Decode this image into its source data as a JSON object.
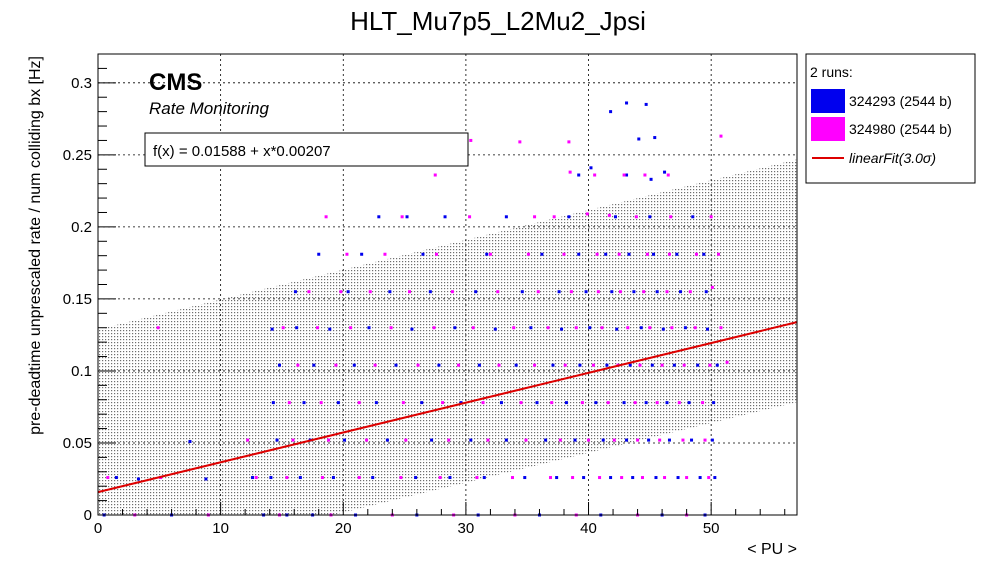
{
  "chart_data": {
    "type": "scatter",
    "title": "HLT_Mu7p5_L2Mu2_Jpsi",
    "xlabel": "< PU >",
    "ylabel": "pre-deadtime unprescaled rate / num colliding bx [Hz]",
    "xlim": [
      0,
      57
    ],
    "ylim": [
      0,
      0.32
    ],
    "xticks": [
      0,
      10,
      20,
      30,
      40,
      50
    ],
    "yticks": [
      0,
      0.05,
      0.1,
      0.15,
      0.2,
      0.25,
      0.3
    ],
    "ytick_labels": [
      "0",
      "0.05",
      "0.1",
      "0.15",
      "0.2",
      "0.25",
      "0.3"
    ],
    "grid": true,
    "cms_label": "CMS",
    "cms_sublabel": "Rate Monitoring",
    "fit_formula": "f(x) = 0.01588 + x*0.00207",
    "fit": {
      "intercept": 0.01588,
      "slope": 0.00207,
      "color": "#dd0000"
    },
    "band": {
      "sigma": 3.0,
      "lower_offset": -0.0555,
      "upper_offset": 0.113
    },
    "legend": {
      "header": "2 runs:",
      "entries": [
        {
          "label": "324293 (2544 b)",
          "color": "#0000ee",
          "kind": "box"
        },
        {
          "label": "324980 (2544 b)",
          "color": "#ff00ff",
          "kind": "box"
        },
        {
          "label": "linearFit(3.0σ)",
          "color": "#dd0000",
          "kind": "line"
        }
      ]
    },
    "series": [
      {
        "name": "324293 (2544 b)",
        "color": "#0000ee",
        "points": [
          [
            1.5,
            0.026
          ],
          [
            3.3,
            0.025
          ],
          [
            8.8,
            0.025
          ],
          [
            12.6,
            0.026
          ],
          [
            14.1,
            0.026
          ],
          [
            16.5,
            0.026
          ],
          [
            19.2,
            0.026
          ],
          [
            22.4,
            0.026
          ],
          [
            25.9,
            0.026
          ],
          [
            28.7,
            0.026
          ],
          [
            31.5,
            0.026
          ],
          [
            34.8,
            0.026
          ],
          [
            37.4,
            0.026
          ],
          [
            39.6,
            0.026
          ],
          [
            41.8,
            0.026
          ],
          [
            43.6,
            0.026
          ],
          [
            45.5,
            0.026
          ],
          [
            47.3,
            0.026
          ],
          [
            49.1,
            0.026
          ],
          [
            50.3,
            0.026
          ],
          [
            7.5,
            0.051
          ],
          [
            14.6,
            0.052
          ],
          [
            17.3,
            0.052
          ],
          [
            20.1,
            0.052
          ],
          [
            23.6,
            0.052
          ],
          [
            27.2,
            0.052
          ],
          [
            30.4,
            0.052
          ],
          [
            33.3,
            0.052
          ],
          [
            36.5,
            0.052
          ],
          [
            38.9,
            0.052
          ],
          [
            41.2,
            0.052
          ],
          [
            43.1,
            0.052
          ],
          [
            44.9,
            0.052
          ],
          [
            46.6,
            0.052
          ],
          [
            48.4,
            0.052
          ],
          [
            50.1,
            0.052
          ],
          [
            14.3,
            0.078
          ],
          [
            16.8,
            0.078
          ],
          [
            19.6,
            0.078
          ],
          [
            22.7,
            0.078
          ],
          [
            26.4,
            0.078
          ],
          [
            29.6,
            0.078
          ],
          [
            32.9,
            0.078
          ],
          [
            35.8,
            0.078
          ],
          [
            38.2,
            0.078
          ],
          [
            40.6,
            0.078
          ],
          [
            42.9,
            0.078
          ],
          [
            44.7,
            0.078
          ],
          [
            46.4,
            0.078
          ],
          [
            48.2,
            0.078
          ],
          [
            50.2,
            0.078
          ],
          [
            14.8,
            0.104
          ],
          [
            17.6,
            0.104
          ],
          [
            20.9,
            0.104
          ],
          [
            24.3,
            0.104
          ],
          [
            27.8,
            0.104
          ],
          [
            31.1,
            0.104
          ],
          [
            34.1,
            0.104
          ],
          [
            37.1,
            0.104
          ],
          [
            39.3,
            0.104
          ],
          [
            41.5,
            0.104
          ],
          [
            43.4,
            0.104
          ],
          [
            45.2,
            0.104
          ],
          [
            47.0,
            0.104
          ],
          [
            48.9,
            0.104
          ],
          [
            50.5,
            0.104
          ],
          [
            14.2,
            0.129
          ],
          [
            16.2,
            0.13
          ],
          [
            18.9,
            0.129
          ],
          [
            22.1,
            0.13
          ],
          [
            25.6,
            0.129
          ],
          [
            29.1,
            0.13
          ],
          [
            32.4,
            0.129
          ],
          [
            35.3,
            0.13
          ],
          [
            37.8,
            0.129
          ],
          [
            40.1,
            0.13
          ],
          [
            42.3,
            0.129
          ],
          [
            44.3,
            0.13
          ],
          [
            46.1,
            0.129
          ],
          [
            47.9,
            0.13
          ],
          [
            49.7,
            0.129
          ],
          [
            16.1,
            0.155
          ],
          [
            20.4,
            0.155
          ],
          [
            23.8,
            0.155
          ],
          [
            27.1,
            0.155
          ],
          [
            30.8,
            0.155
          ],
          [
            34.6,
            0.155
          ],
          [
            37.6,
            0.155
          ],
          [
            39.8,
            0.155
          ],
          [
            41.9,
            0.155
          ],
          [
            43.7,
            0.155
          ],
          [
            45.6,
            0.155
          ],
          [
            47.5,
            0.155
          ],
          [
            49.6,
            0.155
          ],
          [
            18.0,
            0.181
          ],
          [
            21.5,
            0.181
          ],
          [
            26.5,
            0.181
          ],
          [
            31.7,
            0.181
          ],
          [
            36.2,
            0.181
          ],
          [
            39.2,
            0.181
          ],
          [
            41.4,
            0.181
          ],
          [
            43.3,
            0.181
          ],
          [
            45.3,
            0.181
          ],
          [
            47.2,
            0.181
          ],
          [
            49.4,
            0.181
          ],
          [
            22.9,
            0.207
          ],
          [
            25.2,
            0.207
          ],
          [
            28.3,
            0.207
          ],
          [
            33.3,
            0.207
          ],
          [
            38.4,
            0.207
          ],
          [
            42.2,
            0.207
          ],
          [
            45.0,
            0.207
          ],
          [
            48.5,
            0.207
          ],
          [
            39.2,
            0.236
          ],
          [
            40.2,
            0.241
          ],
          [
            45.1,
            0.233
          ],
          [
            46.2,
            0.238
          ],
          [
            43.1,
            0.236
          ],
          [
            41.8,
            0.28
          ],
          [
            43.1,
            0.286
          ],
          [
            44.7,
            0.285
          ],
          [
            45.4,
            0.262
          ],
          [
            44.1,
            0.261
          ],
          [
            0.5,
            0.0
          ],
          [
            6.0,
            0.0
          ],
          [
            13.5,
            0.0
          ],
          [
            15.4,
            0.0
          ],
          [
            17.5,
            0.0
          ],
          [
            21.0,
            0.0
          ],
          [
            26.0,
            0.0
          ],
          [
            31.0,
            0.0
          ],
          [
            36.0,
            0.0
          ],
          [
            41.0,
            0.0
          ],
          [
            46.0,
            0.0
          ],
          [
            49.5,
            0.0
          ]
        ]
      },
      {
        "name": "324980 (2544 b)",
        "color": "#ff00ff",
        "points": [
          [
            0.8,
            0.026
          ],
          [
            5.1,
            0.026
          ],
          [
            12.9,
            0.026
          ],
          [
            15.4,
            0.026
          ],
          [
            18.3,
            0.026
          ],
          [
            21.3,
            0.026
          ],
          [
            24.7,
            0.026
          ],
          [
            27.9,
            0.026
          ],
          [
            30.9,
            0.026
          ],
          [
            33.8,
            0.026
          ],
          [
            36.9,
            0.026
          ],
          [
            38.7,
            0.026
          ],
          [
            40.9,
            0.026
          ],
          [
            42.7,
            0.026
          ],
          [
            44.4,
            0.026
          ],
          [
            46.2,
            0.026
          ],
          [
            48.0,
            0.026
          ],
          [
            49.8,
            0.026
          ],
          [
            12.2,
            0.052
          ],
          [
            15.9,
            0.052
          ],
          [
            18.8,
            0.052
          ],
          [
            21.9,
            0.052
          ],
          [
            25.1,
            0.052
          ],
          [
            28.6,
            0.052
          ],
          [
            31.8,
            0.052
          ],
          [
            34.9,
            0.052
          ],
          [
            37.7,
            0.052
          ],
          [
            40.0,
            0.052
          ],
          [
            42.1,
            0.052
          ],
          [
            44.0,
            0.052
          ],
          [
            45.8,
            0.052
          ],
          [
            47.7,
            0.052
          ],
          [
            49.5,
            0.052
          ],
          [
            15.6,
            0.078
          ],
          [
            18.2,
            0.078
          ],
          [
            21.3,
            0.078
          ],
          [
            24.9,
            0.078
          ],
          [
            28.1,
            0.078
          ],
          [
            31.4,
            0.078
          ],
          [
            34.5,
            0.078
          ],
          [
            37.0,
            0.078
          ],
          [
            39.5,
            0.078
          ],
          [
            41.6,
            0.078
          ],
          [
            43.8,
            0.078
          ],
          [
            45.6,
            0.078
          ],
          [
            47.4,
            0.078
          ],
          [
            49.3,
            0.078
          ],
          [
            16.3,
            0.104
          ],
          [
            19.4,
            0.104
          ],
          [
            22.6,
            0.104
          ],
          [
            26.1,
            0.104
          ],
          [
            29.4,
            0.104
          ],
          [
            32.7,
            0.104
          ],
          [
            35.6,
            0.104
          ],
          [
            38.1,
            0.104
          ],
          [
            40.4,
            0.104
          ],
          [
            42.4,
            0.104
          ],
          [
            44.2,
            0.104
          ],
          [
            46.0,
            0.104
          ],
          [
            47.8,
            0.104
          ],
          [
            49.9,
            0.104
          ],
          [
            51.3,
            0.106
          ],
          [
            4.9,
            0.13
          ],
          [
            15.1,
            0.13
          ],
          [
            17.9,
            0.13
          ],
          [
            20.6,
            0.13
          ],
          [
            23.9,
            0.13
          ],
          [
            27.4,
            0.13
          ],
          [
            30.6,
            0.13
          ],
          [
            33.9,
            0.13
          ],
          [
            36.7,
            0.13
          ],
          [
            39.0,
            0.13
          ],
          [
            41.1,
            0.13
          ],
          [
            43.2,
            0.13
          ],
          [
            45.0,
            0.13
          ],
          [
            46.8,
            0.13
          ],
          [
            48.7,
            0.13
          ],
          [
            50.8,
            0.13
          ],
          [
            17.2,
            0.155
          ],
          [
            19.8,
            0.155
          ],
          [
            22.2,
            0.155
          ],
          [
            25.4,
            0.155
          ],
          [
            28.9,
            0.155
          ],
          [
            32.6,
            0.155
          ],
          [
            35.9,
            0.155
          ],
          [
            38.6,
            0.155
          ],
          [
            40.8,
            0.155
          ],
          [
            42.6,
            0.155
          ],
          [
            44.5,
            0.155
          ],
          [
            46.4,
            0.155
          ],
          [
            48.3,
            0.155
          ],
          [
            50.1,
            0.158
          ],
          [
            20.3,
            0.181
          ],
          [
            23.4,
            0.181
          ],
          [
            27.6,
            0.181
          ],
          [
            32.0,
            0.181
          ],
          [
            35.1,
            0.181
          ],
          [
            38.0,
            0.181
          ],
          [
            40.7,
            0.181
          ],
          [
            42.5,
            0.181
          ],
          [
            44.8,
            0.181
          ],
          [
            46.6,
            0.181
          ],
          [
            48.8,
            0.181
          ],
          [
            50.6,
            0.181
          ],
          [
            18.6,
            0.207
          ],
          [
            24.8,
            0.207
          ],
          [
            30.3,
            0.207
          ],
          [
            35.6,
            0.207
          ],
          [
            37.2,
            0.207
          ],
          [
            39.9,
            0.209
          ],
          [
            41.7,
            0.208
          ],
          [
            43.9,
            0.207
          ],
          [
            46.7,
            0.207
          ],
          [
            50.0,
            0.207
          ],
          [
            27.5,
            0.236
          ],
          [
            38.5,
            0.238
          ],
          [
            40.5,
            0.236
          ],
          [
            42.9,
            0.236
          ],
          [
            44.6,
            0.236
          ],
          [
            46.5,
            0.236
          ],
          [
            30.4,
            0.26
          ],
          [
            34.4,
            0.259
          ],
          [
            38.4,
            0.259
          ],
          [
            50.8,
            0.263
          ],
          [
            3.0,
            0.0
          ],
          [
            9.0,
            0.0
          ],
          [
            14.8,
            0.0
          ],
          [
            19.0,
            0.0
          ],
          [
            24.0,
            0.0
          ],
          [
            29.0,
            0.0
          ],
          [
            34.0,
            0.0
          ],
          [
            39.0,
            0.0
          ],
          [
            44.0,
            0.0
          ],
          [
            48.0,
            0.0
          ]
        ]
      }
    ]
  }
}
